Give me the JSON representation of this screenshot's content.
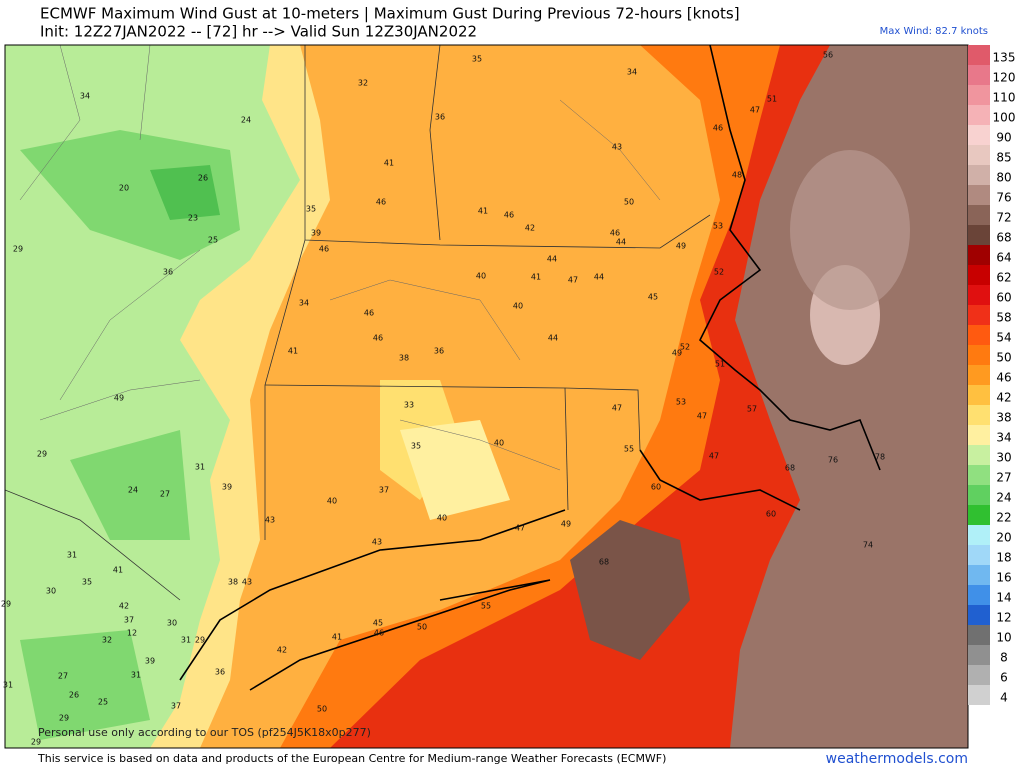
{
  "header": {
    "title": "ECMWF Maximum Wind Gust at 10-meters | Maximum Gust During Previous 72-hours [knots]",
    "subtitle": "Init: 12Z27JAN2022 -- [72] hr --> Valid Sun 12Z30JAN2022",
    "max_wind": "Max Wind: 82.7 knots"
  },
  "colorbar": {
    "levels": [
      {
        "label": "135",
        "color": "#e05a6a"
      },
      {
        "label": "120",
        "color": "#e8788a"
      },
      {
        "label": "110",
        "color": "#f0959e"
      },
      {
        "label": "100",
        "color": "#f5b2b6"
      },
      {
        "label": "90",
        "color": "#f8d2d0"
      },
      {
        "label": "85",
        "color": "#e8c8c0"
      },
      {
        "label": "80",
        "color": "#d0b0a8"
      },
      {
        "label": "76",
        "color": "#b08a80"
      },
      {
        "label": "72",
        "color": "#8a6458"
      },
      {
        "label": "68",
        "color": "#6a4438"
      },
      {
        "label": "64",
        "color": "#a00000"
      },
      {
        "label": "62",
        "color": "#c80000"
      },
      {
        "label": "60",
        "color": "#e01010"
      },
      {
        "label": "58",
        "color": "#f03018"
      },
      {
        "label": "54",
        "color": "#ff5a10"
      },
      {
        "label": "50",
        "color": "#ff7a10"
      },
      {
        "label": "46",
        "color": "#ff9a20"
      },
      {
        "label": "42",
        "color": "#ffc040"
      },
      {
        "label": "38",
        "color": "#ffe070"
      },
      {
        "label": "34",
        "color": "#fff0a0"
      },
      {
        "label": "30",
        "color": "#c8f0a0"
      },
      {
        "label": "27",
        "color": "#90e080"
      },
      {
        "label": "24",
        "color": "#60d060"
      },
      {
        "label": "22",
        "color": "#30c030"
      },
      {
        "label": "20",
        "color": "#b0f0f8"
      },
      {
        "label": "18",
        "color": "#a0d8f8"
      },
      {
        "label": "16",
        "color": "#70b8f0"
      },
      {
        "label": "14",
        "color": "#4090e8"
      },
      {
        "label": "12",
        "color": "#2060d0"
      },
      {
        "label": "10",
        "color": "#707070"
      },
      {
        "label": "8",
        "color": "#909090"
      },
      {
        "label": "6",
        "color": "#b0b0b0"
      },
      {
        "label": "4",
        "color": "#d0d0d0"
      }
    ]
  },
  "map": {
    "labels": [
      "34",
      "24",
      "20",
      "26",
      "23",
      "25",
      "29",
      "36",
      "32",
      "35",
      "34",
      "36",
      "41",
      "46",
      "35",
      "39",
      "46",
      "41",
      "46",
      "42",
      "50",
      "46",
      "44",
      "43",
      "51",
      "47",
      "46",
      "48",
      "56",
      "53",
      "49",
      "52",
      "44",
      "41",
      "47",
      "44",
      "40",
      "40",
      "45",
      "44",
      "34",
      "46",
      "46",
      "41",
      "38",
      "36",
      "49",
      "52",
      "49",
      "51",
      "33",
      "47",
      "53",
      "47",
      "57",
      "35",
      "40",
      "29",
      "31",
      "55",
      "47",
      "68",
      "76",
      "78",
      "39",
      "24",
      "27",
      "37",
      "40",
      "40",
      "47",
      "49",
      "43",
      "43",
      "60",
      "74",
      "68",
      "31",
      "41",
      "30",
      "35",
      "38",
      "43",
      "42",
      "37",
      "30",
      "12",
      "29",
      "31",
      "32",
      "55",
      "45",
      "46",
      "50",
      "41",
      "42",
      "39",
      "36",
      "31",
      "27",
      "26",
      "25",
      "31",
      "29",
      "29",
      "37",
      "50",
      "29",
      "60"
    ],
    "note": "Personal use only according to our TOS (pf254J5K18x0p277)"
  },
  "footer": {
    "credit": "This service is based on data and products of the European Centre for Medium-range Weather Forecasts (ECMWF)",
    "site": "weathermodels.com"
  }
}
